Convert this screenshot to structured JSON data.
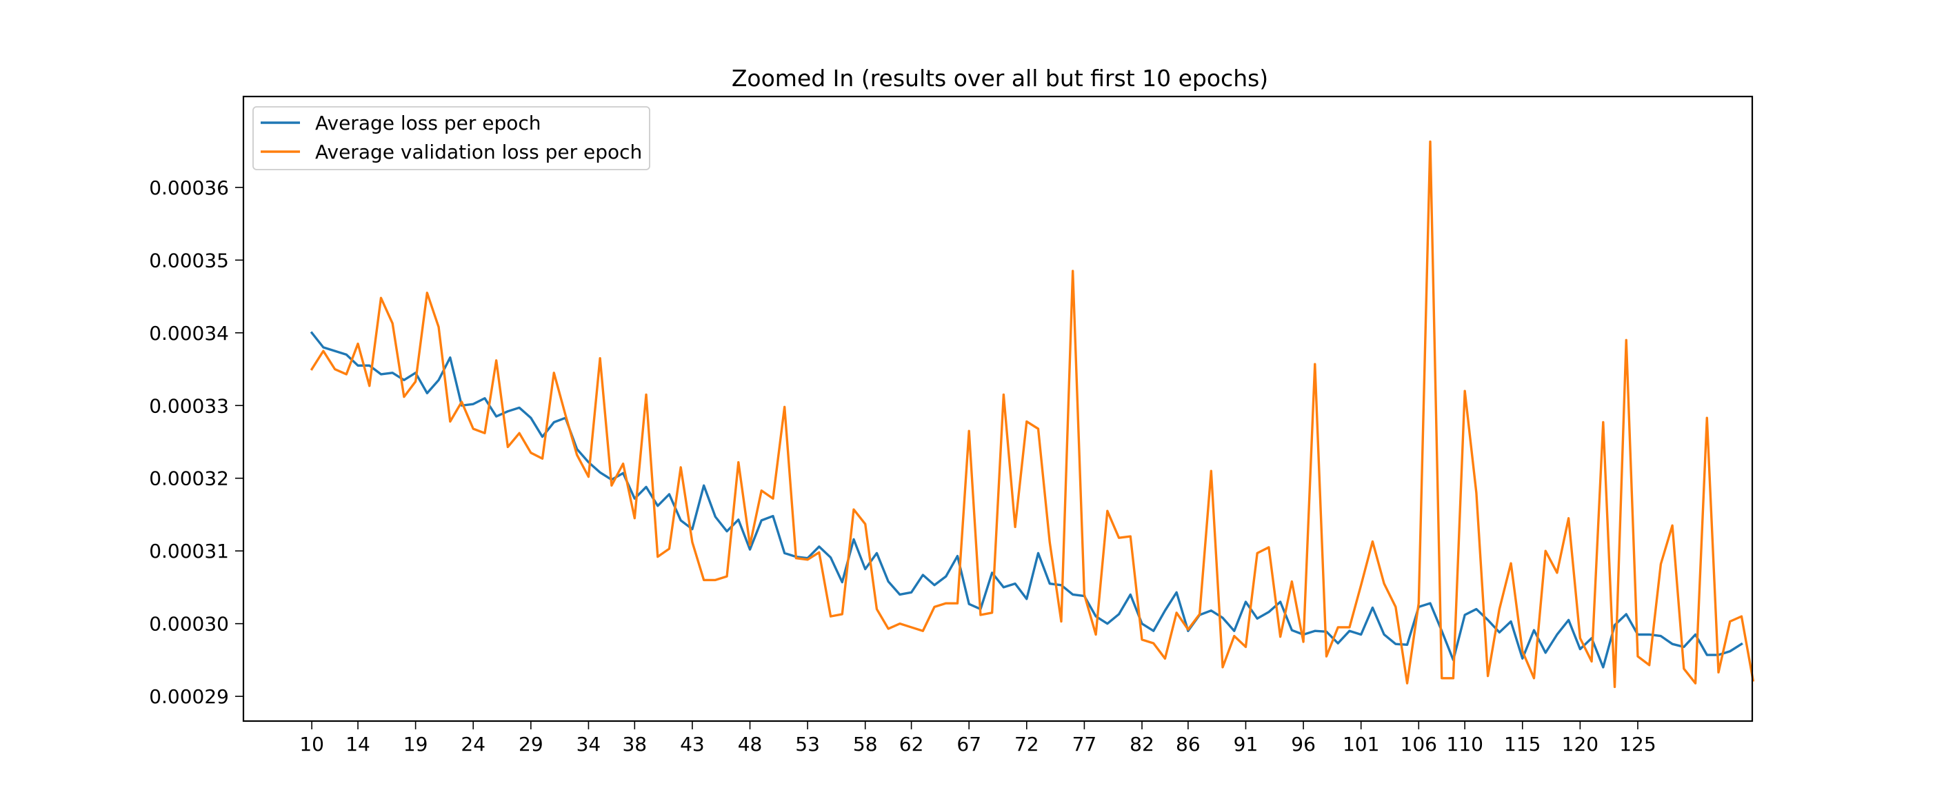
{
  "chart_data": {
    "type": "line",
    "title": "Zoomed In (results over all but first 10 epochs)",
    "xlabel": "",
    "ylabel": "",
    "xlim": [
      4.07,
      134.93
    ],
    "ylim": [
      0.0002866,
      0.0003725
    ],
    "x_ticks": [
      10,
      14,
      19,
      24,
      29,
      34,
      38,
      43,
      48,
      53,
      58,
      62,
      67,
      72,
      77,
      82,
      86,
      91,
      96,
      101,
      106,
      110,
      115,
      120,
      125
    ],
    "y_ticks": [
      0.00029,
      0.0003,
      0.00031,
      0.00032,
      0.00033,
      0.00034,
      0.00035,
      0.00036
    ],
    "y_tick_labels": [
      "0.00029",
      "0.00030",
      "0.00031",
      "0.00032",
      "0.00033",
      "0.00034",
      "0.00035",
      "0.00036"
    ],
    "grid": false,
    "legend_position": "upper left",
    "x_start": 10,
    "series": [
      {
        "name": "Average loss per epoch",
        "color": "#1f77b4",
        "values": [
          0.00034,
          0.000338,
          0.0003375,
          0.000337,
          0.0003355,
          0.0003355,
          0.0003343,
          0.0003345,
          0.0003335,
          0.0003345,
          0.0003317,
          0.0003335,
          0.0003366,
          0.00033,
          0.0003302,
          0.000331,
          0.0003285,
          0.0003292,
          0.0003297,
          0.0003283,
          0.0003257,
          0.0003277,
          0.0003283,
          0.000324,
          0.0003222,
          0.0003208,
          0.0003198,
          0.0003207,
          0.0003172,
          0.0003188,
          0.0003162,
          0.0003178,
          0.0003142,
          0.000313,
          0.000319,
          0.0003147,
          0.0003127,
          0.0003143,
          0.0003102,
          0.0003142,
          0.0003148,
          0.0003097,
          0.0003092,
          0.000309,
          0.0003106,
          0.0003091,
          0.0003057,
          0.0003116,
          0.0003075,
          0.0003097,
          0.0003058,
          0.000304,
          0.0003043,
          0.0003067,
          0.0003053,
          0.0003065,
          0.0003093,
          0.0003027,
          0.000302,
          0.000307,
          0.000305,
          0.0003055,
          0.0003034,
          0.0003097,
          0.0003055,
          0.0003053,
          0.000304,
          0.0003038,
          0.000301,
          0.0003,
          0.0003013,
          0.000304,
          0.0003,
          0.000299,
          0.0003018,
          0.0003043,
          0.000299,
          0.0003012,
          0.0003018,
          0.0003008,
          0.000299,
          0.000303,
          0.0003007,
          0.0003016,
          0.000303,
          0.0002991,
          0.0002985,
          0.000299,
          0.0002989,
          0.0002973,
          0.000299,
          0.0002985,
          0.0003022,
          0.0002985,
          0.0002972,
          0.0002971,
          0.0003023,
          0.0003028,
          0.000299,
          0.000295,
          0.0003012,
          0.000302,
          0.0003005,
          0.0002988,
          0.0003003,
          0.0002952,
          0.0002991,
          0.000296,
          0.0002985,
          0.0003005,
          0.0002965,
          0.000298,
          0.000294,
          0.0002998,
          0.0003013,
          0.0002985,
          0.0002985,
          0.0002983,
          0.0002972,
          0.0002968,
          0.0002985,
          0.0002957,
          0.0002957,
          0.0002962,
          0.0002972
        ]
      },
      {
        "name": "Average validation loss per epoch",
        "color": "#ff7f0e",
        "values": [
          0.000335,
          0.0003375,
          0.000335,
          0.0003343,
          0.0003385,
          0.0003327,
          0.0003448,
          0.0003413,
          0.0003312,
          0.0003333,
          0.0003455,
          0.0003408,
          0.0003278,
          0.0003305,
          0.0003268,
          0.0003262,
          0.0003362,
          0.0003243,
          0.0003262,
          0.0003235,
          0.0003227,
          0.0003345,
          0.0003287,
          0.0003232,
          0.0003202,
          0.0003365,
          0.000319,
          0.000322,
          0.0003145,
          0.0003315,
          0.0003092,
          0.0003103,
          0.0003215,
          0.0003112,
          0.000306,
          0.000306,
          0.0003065,
          0.0003222,
          0.0003108,
          0.0003183,
          0.0003172,
          0.0003298,
          0.000309,
          0.0003088,
          0.0003098,
          0.000301,
          0.0003013,
          0.0003157,
          0.0003137,
          0.000302,
          0.0002993,
          0.0003,
          0.0002995,
          0.000299,
          0.0003023,
          0.0003028,
          0.0003028,
          0.0003265,
          0.0003012,
          0.0003015,
          0.0003315,
          0.0003133,
          0.0003278,
          0.0003268,
          0.0003112,
          0.0003003,
          0.0003485,
          0.000304,
          0.0002985,
          0.0003155,
          0.0003118,
          0.000312,
          0.0002978,
          0.0002973,
          0.0002952,
          0.0003015,
          0.0002992,
          0.0003013,
          0.000321,
          0.000294,
          0.0002983,
          0.0002968,
          0.0003097,
          0.0003105,
          0.0002982,
          0.0003058,
          0.0002975,
          0.0003357,
          0.0002955,
          0.0002995,
          0.0002995,
          0.0003053,
          0.0003113,
          0.0003055,
          0.0003023,
          0.0002918,
          0.0003028,
          0.0003663,
          0.0002925,
          0.0002925,
          0.000332,
          0.000318,
          0.0002928,
          0.000302,
          0.0003083,
          0.0002962,
          0.0002925,
          0.00031,
          0.000307,
          0.0003145,
          0.000298,
          0.0002948,
          0.0003277,
          0.0002913,
          0.000339,
          0.0002955,
          0.0002943,
          0.0003082,
          0.0003135,
          0.0002938,
          0.0002918,
          0.0003283,
          0.0002933,
          0.0003003,
          0.000301,
          0.0002922
        ]
      }
    ]
  }
}
